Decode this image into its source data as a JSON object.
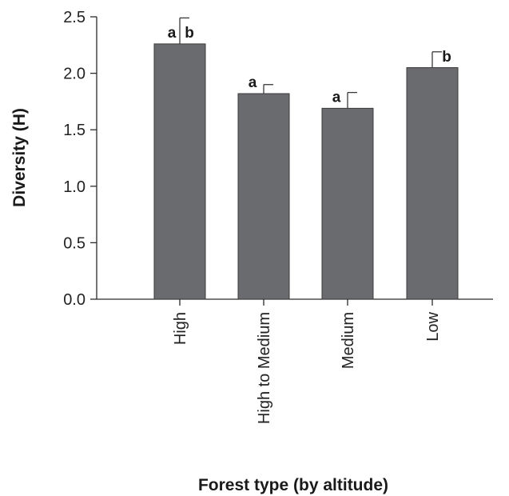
{
  "chart_data": {
    "type": "bar",
    "categories": [
      "High",
      "High to Medium",
      "Medium",
      "Low"
    ],
    "values": [
      2.26,
      1.82,
      1.69,
      2.05
    ],
    "errors": [
      0.23,
      0.08,
      0.14,
      0.14
    ],
    "significance": [
      "a b",
      "a",
      "a",
      "b"
    ],
    "xlabel": "Forest type (by altitude)",
    "ylabel": "Diversity (H)",
    "ylim": [
      0,
      2.5
    ],
    "yticks": [
      0.0,
      0.5,
      1.0,
      1.5,
      2.0,
      2.5
    ],
    "ytick_labels": [
      "0.0",
      "0.5",
      "1.0",
      "1.5",
      "2.0",
      "2.5"
    ],
    "grid": false,
    "bar_color": "#6a6b6e"
  }
}
